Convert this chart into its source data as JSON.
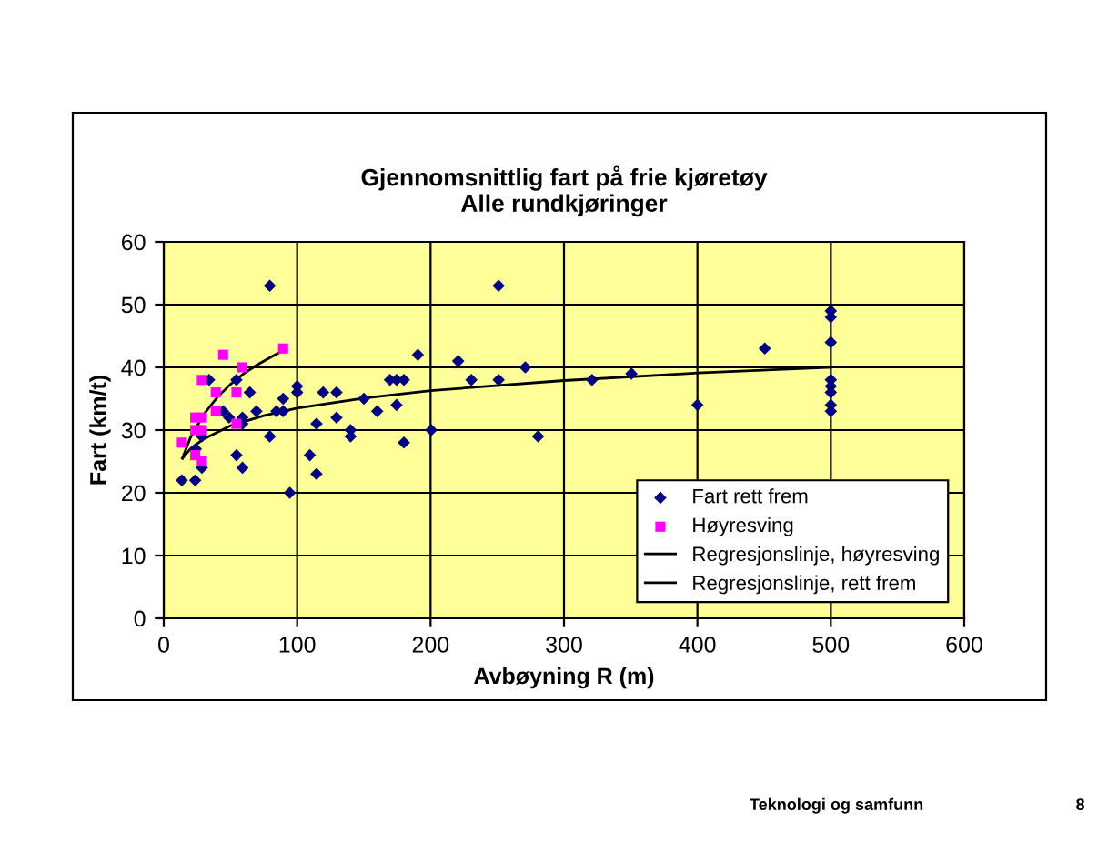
{
  "chart_data": {
    "type": "scatter",
    "title": "Gjennomsnittlig fart på frie kjøretøy\nAlle rundkjøringer",
    "xlabel": "Avbøyning R (m)",
    "ylabel": "Fart (km/t)",
    "xlim": [
      0,
      600
    ],
    "ylim": [
      0,
      60
    ],
    "xticks": [
      0,
      100,
      200,
      300,
      400,
      500,
      600
    ],
    "yticks": [
      0,
      10,
      20,
      30,
      40,
      50,
      60
    ],
    "grid": true,
    "legend": "bottom right",
    "series": [
      {
        "name": "Fart rett frem",
        "color": "#000080",
        "marker": "diamond",
        "x": [
          13.6,
          23.6,
          24,
          28.6,
          28.6,
          34,
          44.5,
          49,
          54.5,
          54.5,
          59,
          59,
          59,
          64.5,
          69.5,
          79.5,
          79.5,
          84.5,
          89.5,
          89.5,
          94.5,
          100,
          100,
          109.5,
          114.5,
          114.5,
          119.5,
          129.5,
          129.5,
          140,
          140,
          150,
          160,
          169.5,
          174.5,
          174.5,
          180,
          180,
          190.5,
          200.5,
          220.7,
          230.6,
          251,
          251,
          271,
          280.6,
          321,
          350.5,
          400,
          450.5,
          500,
          500,
          500,
          500,
          500,
          500,
          500,
          500
        ],
        "values": [
          22,
          22,
          27,
          24,
          29,
          38,
          33,
          32,
          38,
          26,
          32,
          31,
          24,
          36,
          33,
          53,
          29,
          33,
          35,
          33,
          20,
          37,
          36,
          26,
          31,
          23,
          36,
          36,
          32,
          30,
          29,
          35,
          33,
          38,
          34,
          38,
          38,
          28,
          42,
          30,
          41,
          38,
          53,
          38,
          40,
          29,
          38,
          39,
          34,
          43,
          49,
          48,
          44,
          38,
          37,
          36,
          34,
          33
        ]
      },
      {
        "name": "Høyresving",
        "color": "#ff00ff",
        "marker": "square",
        "x": [
          13.6,
          23.6,
          28.6,
          23.6,
          28.6,
          23.6,
          28.6,
          28.6,
          39,
          44.5,
          39,
          54.5,
          54.5,
          59,
          89.5
        ],
        "values": [
          28,
          32,
          32,
          30,
          30,
          26,
          25,
          38,
          36,
          42,
          33,
          36,
          31,
          40,
          43
        ]
      },
      {
        "name": "Regresjonslinje, høyresving",
        "type": "line",
        "color": "#000000",
        "x": [
          14,
          20,
          30,
          40,
          50,
          60,
          70,
          80,
          88
        ],
        "values": [
          25.5,
          28.8,
          32.5,
          35.2,
          37.3,
          39.0,
          40.4,
          41.6,
          42.5
        ]
      },
      {
        "name": "Regresjonslinje, rett frem",
        "type": "line",
        "color": "#000000",
        "x": [
          14,
          20,
          30,
          50,
          75,
          100,
          150,
          200,
          300,
          400,
          500
        ],
        "values": [
          25.5,
          27.0,
          28.6,
          30.7,
          32.3,
          33.5,
          35.1,
          36.3,
          37.9,
          39.1,
          40.0
        ]
      }
    ],
    "annotations": [
      "Teknologi og samfunn",
      "8"
    ]
  }
}
